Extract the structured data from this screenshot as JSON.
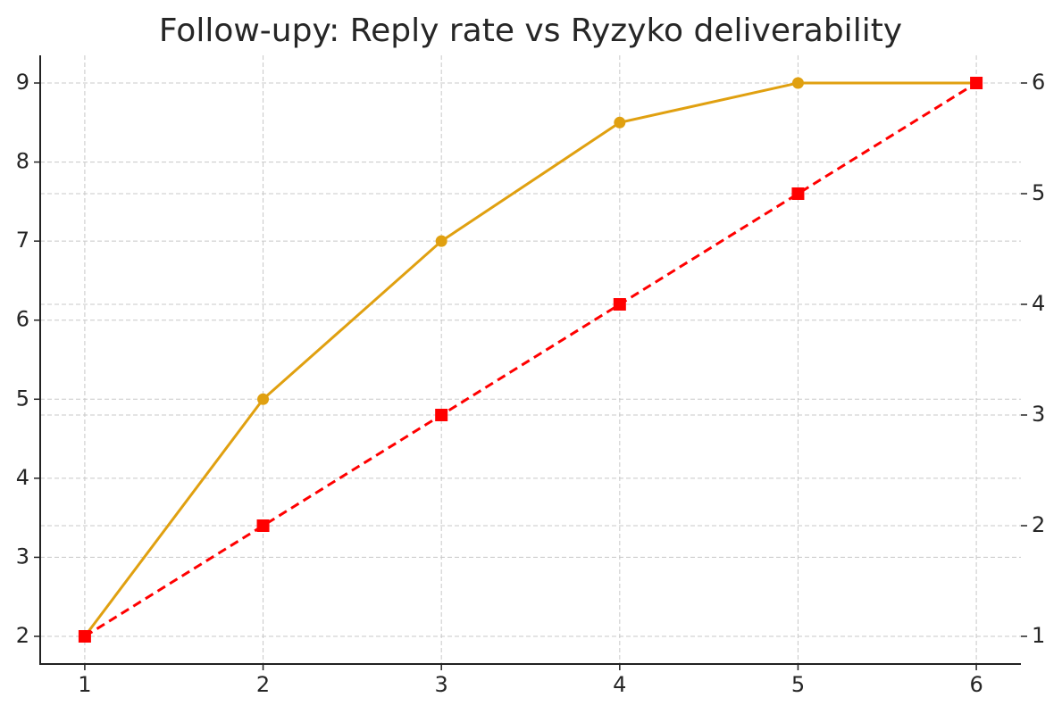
{
  "chart_data": {
    "type": "line",
    "title": "Follow-upy: Reply rate vs Ryzyko deliverability",
    "x": [
      1,
      2,
      3,
      4,
      5,
      6
    ],
    "series": [
      {
        "color": "#e0a010",
        "marker": "circle",
        "dash": "solid",
        "values": [
          2,
          5,
          7,
          8.5,
          9,
          9
        ]
      },
      {
        "color": "#ff0000",
        "marker": "square",
        "dash": "dashed",
        "axis": "y2",
        "values": [
          1,
          2,
          3,
          4,
          5,
          6
        ]
      }
    ],
    "xlim": [
      0.75,
      6.25
    ],
    "xticks": [
      1,
      2,
      3,
      4,
      5,
      6
    ],
    "ylim": [
      1.65,
      9.35
    ],
    "yticks": [
      2,
      3,
      4,
      5,
      6,
      7,
      8,
      9
    ],
    "y2lim": [
      0.75,
      6.25
    ],
    "y2ticks": [
      1,
      2,
      3,
      4,
      5,
      6
    ],
    "grid": true
  }
}
